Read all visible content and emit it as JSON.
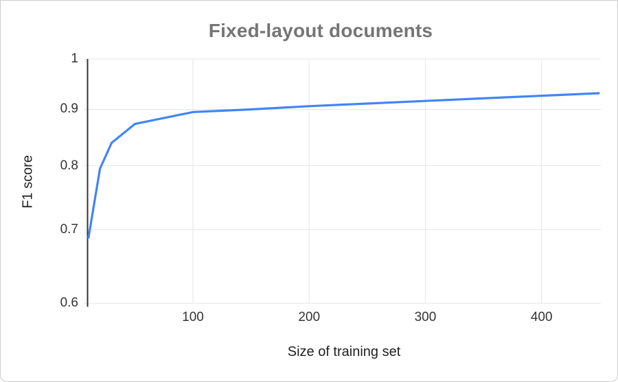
{
  "chart": {
    "title": "Fixed-layout documents",
    "x_axis_title": "Size of training set",
    "y_axis_title": "F1 score",
    "y_tick_labels": [
      "1",
      "0.9",
      "0.8",
      "0.7",
      "0.6"
    ],
    "x_tick_labels": [
      "100",
      "200",
      "300",
      "400"
    ],
    "colors": {
      "line": "#4285f4",
      "title_text": "#757575",
      "tick_text": "#333333",
      "gridline": "#e6e6e6",
      "y_axis_line": "#333333"
    }
  },
  "chart_data": {
    "type": "line",
    "title": "Fixed-layout documents",
    "xlabel": "Size of training set",
    "ylabel": "F1 score",
    "x": [
      10,
      20,
      30,
      50,
      100,
      150,
      200,
      250,
      300,
      350,
      400,
      450
    ],
    "y": [
      0.687,
      0.795,
      0.839,
      0.873,
      0.895,
      0.9,
      0.906,
      0.911,
      0.916,
      0.921,
      0.926,
      0.931
    ],
    "series": [
      {
        "name": "F1 score",
        "color": "#4285f4"
      }
    ],
    "xlim": [
      10,
      450
    ],
    "ylim": [
      0.6,
      1.0
    ],
    "y_scale": "log",
    "x_tick_values": [
      100,
      200,
      300,
      400
    ],
    "y_tick_values": [
      1,
      0.9,
      0.8,
      0.7,
      0.6
    ],
    "grid": true,
    "legend": "none"
  }
}
